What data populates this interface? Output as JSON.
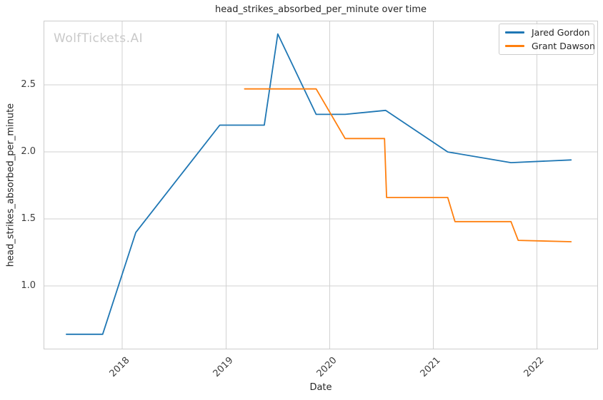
{
  "figure": {
    "title": "head_strikes_absorbed_per_minute over time",
    "watermark": "WolfTickets.AI"
  },
  "chart_data": {
    "type": "line",
    "title": "head_strikes_absorbed_per_minute over time",
    "xlabel": "Date",
    "ylabel": "head_strikes_absorbed_per_minute",
    "x_unit": "decimal_year",
    "xlim": [
      2017.24,
      2022.59
    ],
    "ylim": [
      0.527,
      2.979
    ],
    "grid": true,
    "legend_position": "upper-right",
    "xticks": [
      {
        "value": 2018,
        "label": "2018"
      },
      {
        "value": 2019,
        "label": "2019"
      },
      {
        "value": 2020,
        "label": "2020"
      },
      {
        "value": 2021,
        "label": "2021"
      },
      {
        "value": 2022,
        "label": "2022"
      }
    ],
    "yticks": [
      {
        "value": 1.0,
        "label": "1.0"
      },
      {
        "value": 1.5,
        "label": "1.5"
      },
      {
        "value": 2.0,
        "label": "2.0"
      },
      {
        "value": 2.5,
        "label": "2.5"
      }
    ],
    "series": [
      {
        "name": "Jared Gordon",
        "color": "#1f77b4",
        "points": [
          [
            2017.46,
            0.64
          ],
          [
            2017.81,
            0.64
          ],
          [
            2018.13,
            1.4
          ],
          [
            2018.94,
            2.2
          ],
          [
            2019.37,
            2.2
          ],
          [
            2019.5,
            2.88
          ],
          [
            2019.87,
            2.28
          ],
          [
            2020.15,
            2.28
          ],
          [
            2020.54,
            2.31
          ],
          [
            2021.14,
            2.0
          ],
          [
            2021.75,
            1.92
          ],
          [
            2022.33,
            1.94
          ]
        ]
      },
      {
        "name": "Grant Dawson",
        "color": "#ff7f0e",
        "points": [
          [
            2019.18,
            2.47
          ],
          [
            2019.87,
            2.47
          ],
          [
            2020.15,
            2.1
          ],
          [
            2020.53,
            2.1
          ],
          [
            2020.55,
            1.66
          ],
          [
            2021.14,
            1.66
          ],
          [
            2021.21,
            1.48
          ],
          [
            2021.75,
            1.48
          ],
          [
            2021.82,
            1.34
          ],
          [
            2022.33,
            1.33
          ]
        ]
      }
    ]
  },
  "colors": {
    "background": "#ffffff",
    "grid": "#d2d2d2",
    "axis_border": "#cccccc",
    "title_text": "#262626",
    "tick_text": "#3d3d3d",
    "watermark": "#c9c9c9",
    "series_blue": "#1f77b4",
    "series_orange": "#ff7f0e"
  }
}
